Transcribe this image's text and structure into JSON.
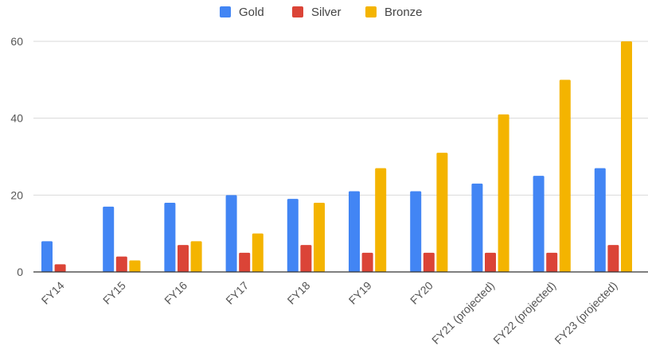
{
  "chart_data": {
    "type": "bar",
    "categories": [
      "FY14",
      "FY15",
      "FY16",
      "FY17",
      "FY18",
      "FY19",
      "FY20",
      "FY21 (projected)",
      "FY22 (projected)",
      "FY23 (projected)"
    ],
    "series": [
      {
        "name": "Gold",
        "color": "#4285f4",
        "values": [
          8,
          17,
          18,
          20,
          19,
          21,
          21,
          23,
          25,
          27
        ]
      },
      {
        "name": "Silver",
        "color": "#db4437",
        "values": [
          2,
          4,
          7,
          5,
          7,
          5,
          5,
          5,
          5,
          7
        ]
      },
      {
        "name": "Bronze",
        "color": "#f4b400",
        "values": [
          0,
          3,
          8,
          10,
          18,
          27,
          31,
          41,
          50,
          60
        ]
      }
    ],
    "title": "",
    "xlabel": "",
    "ylabel": "",
    "ylim": [
      0,
      60
    ],
    "yticks": [
      0,
      20,
      40,
      60
    ],
    "grid": true,
    "legend_position": "top-center"
  }
}
